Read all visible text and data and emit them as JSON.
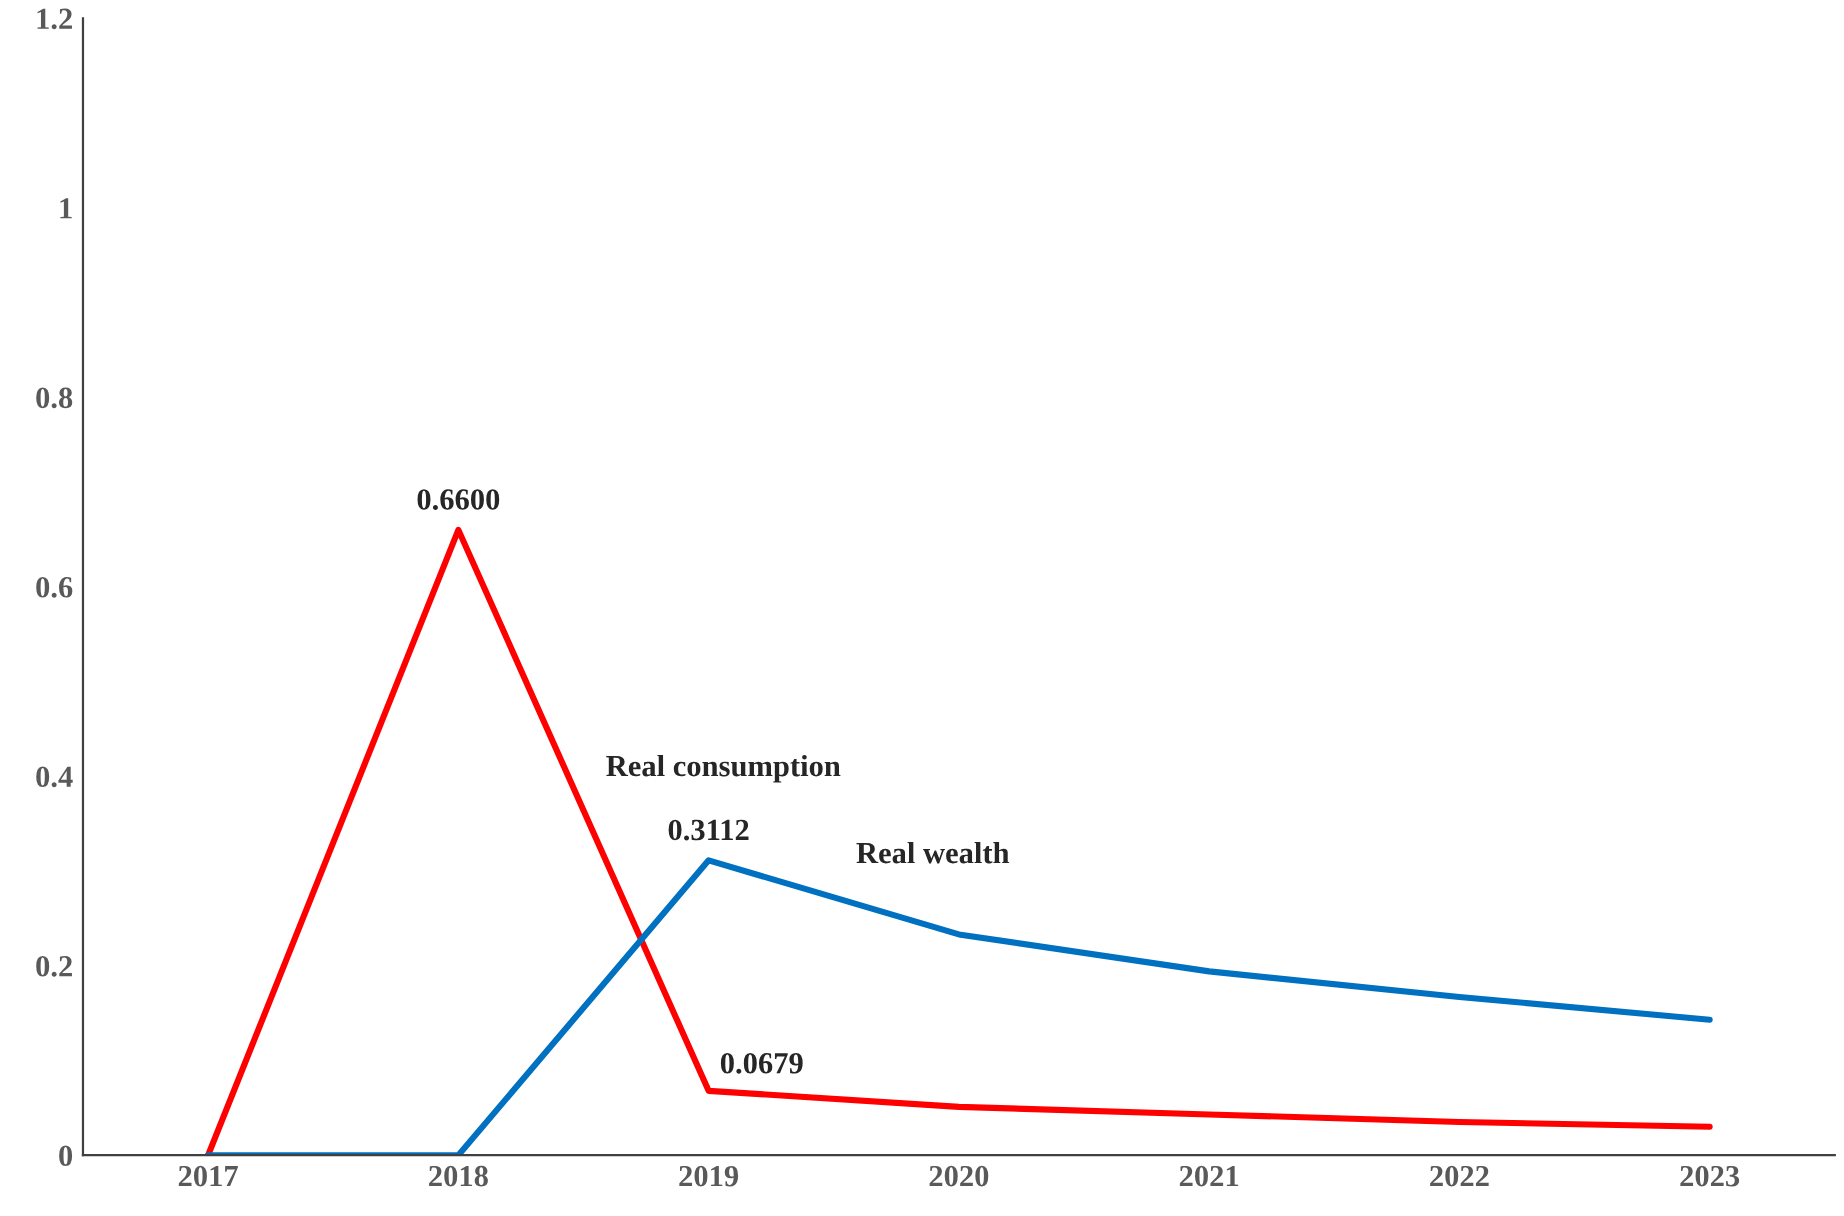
{
  "chart_data": {
    "type": "line",
    "categories": [
      "2017",
      "2018",
      "2019",
      "2020",
      "2021",
      "2022",
      "2023"
    ],
    "series": [
      {
        "name": "Real consumption",
        "color": "#ff0000",
        "values": [
          0,
          0.66,
          0.0679,
          0.051,
          0.043,
          0.035,
          0.03
        ],
        "value_labels": [
          null,
          "0.6600",
          "0.0679",
          null,
          null,
          null,
          null
        ]
      },
      {
        "name": "Real wealth",
        "color": "#0070c0",
        "values": [
          0,
          0,
          0.3112,
          0.233,
          0.194,
          0.167,
          0.143
        ],
        "value_labels": [
          null,
          null,
          "0.3112",
          null,
          null,
          null,
          null
        ]
      }
    ],
    "ylim": [
      0,
      1.2
    ],
    "yticks": [
      0,
      0.2,
      0.4,
      0.6,
      0.8,
      1,
      1.2
    ],
    "grid": false,
    "legend": false,
    "marker": "none",
    "line_style": "solid"
  }
}
